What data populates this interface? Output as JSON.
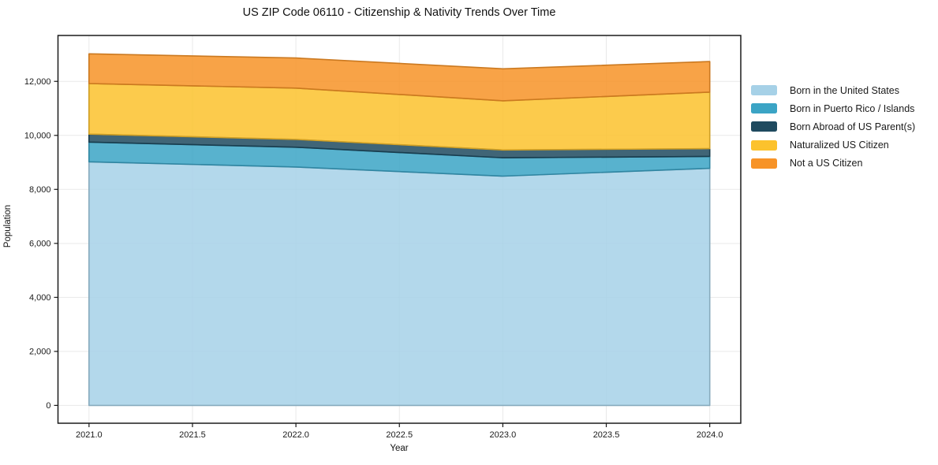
{
  "chart_data": {
    "type": "area",
    "stacked": true,
    "title": "US ZIP Code 06110 - Citizenship & Nativity Trends Over Time",
    "xlabel": "Year",
    "ylabel": "Population",
    "x": [
      2021,
      2022,
      2023,
      2024
    ],
    "series": [
      {
        "name": "Born in the United States",
        "color": "#a6d1e7",
        "values": [
          9020,
          8830,
          8490,
          8780
        ]
      },
      {
        "name": "Born in Puerto Rico / Islands",
        "color": "#3ba4c5",
        "values": [
          730,
          730,
          680,
          440
        ]
      },
      {
        "name": "Born Abroad of US Parent(s)",
        "color": "#1f4a5f",
        "values": [
          295,
          290,
          290,
          290
        ]
      },
      {
        "name": "Naturalized US Citizen",
        "color": "#fcc22d",
        "values": [
          1875,
          1900,
          1820,
          2090
        ]
      },
      {
        "name": "Not a US Citizen",
        "color": "#f79327",
        "values": [
          1100,
          1115,
          1185,
          1135
        ]
      }
    ],
    "totals": [
      13020,
      12865,
      12465,
      12735
    ],
    "xlim": [
      2020.85,
      2024.15
    ],
    "ylim": [
      -660,
      13700
    ],
    "x_ticks": [
      2021.0,
      2021.5,
      2022.0,
      2022.5,
      2023.0,
      2023.5,
      2024.0
    ],
    "x_tick_labels": [
      "2021.0",
      "2021.5",
      "2022.0",
      "2022.5",
      "2023.0",
      "2023.5",
      "2024.0"
    ],
    "y_ticks": [
      0,
      2000,
      4000,
      6000,
      8000,
      10000,
      12000
    ],
    "y_tick_labels": [
      "0",
      "2,000",
      "4,000",
      "6,000",
      "8,000",
      "10,000",
      "12,000"
    ],
    "grid": true,
    "grid_color": "#e9e9e9",
    "spine_color": "#1a1a1a",
    "fill_opacity": 0.85,
    "legend_position": "right-outside"
  }
}
